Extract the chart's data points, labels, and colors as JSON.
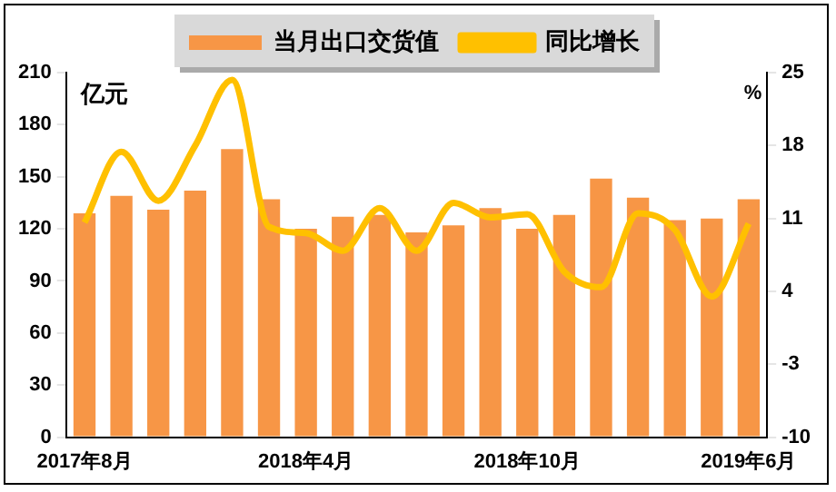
{
  "chart_data": {
    "type": "bar",
    "ylabel": "亿元",
    "y2label": "%",
    "categories": [
      "2017年8月",
      null,
      null,
      null,
      null,
      null,
      "2018年4月",
      null,
      null,
      null,
      null,
      null,
      "2018年10月",
      null,
      null,
      null,
      null,
      null,
      "2019年6月"
    ],
    "series": [
      {
        "name": "当月出口交货值",
        "color": "#f79646",
        "values": [
          129,
          139,
          131,
          142,
          166,
          137,
          120,
          127,
          128,
          118,
          122,
          132,
          120,
          128,
          149,
          138,
          125,
          126,
          137
        ]
      },
      {
        "name": "同比增长",
        "type": "line",
        "axis": "y2",
        "color": "#ffc000",
        "values": [
          10.6,
          17.4,
          12.7,
          18.0,
          24.3,
          10.2,
          9.6,
          7.9,
          12.0,
          7.9,
          12.5,
          11.1,
          11.4,
          5.9,
          4.4,
          11.5,
          9.9,
          3.5,
          10.5
        ]
      }
    ],
    "ylim": [
      0,
      210
    ],
    "yticks": [
      0,
      30,
      60,
      90,
      120,
      150,
      180,
      210
    ],
    "y2lim": [
      -10,
      25
    ],
    "y2ticks": [
      -10,
      -3,
      4,
      11,
      18,
      25
    ],
    "legend": "top",
    "grid": false,
    "marker": "none"
  }
}
